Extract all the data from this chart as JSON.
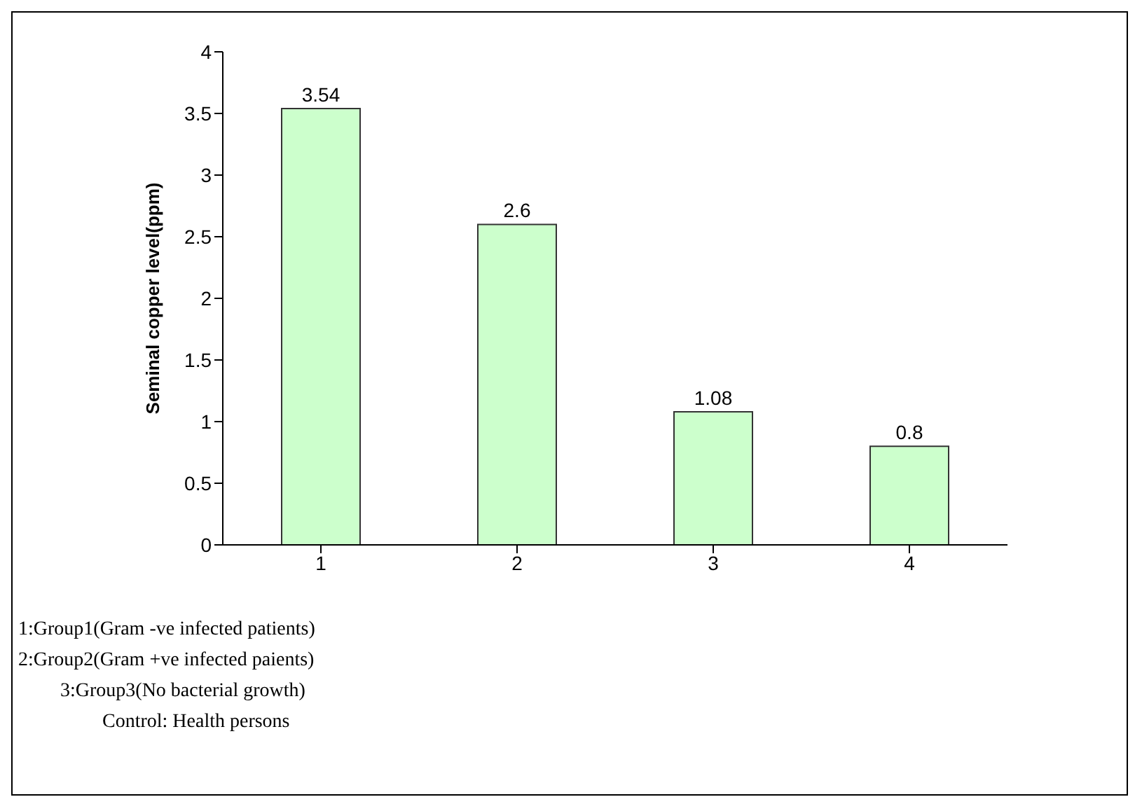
{
  "chart_data": {
    "type": "bar",
    "ylabel": "Seminal copper level(ppm)",
    "categories": [
      "1",
      "2",
      "3",
      "4"
    ],
    "values": [
      3.54,
      2.6,
      1.08,
      0.8
    ],
    "color": "#ccffcc",
    "ylim": [
      0,
      4
    ],
    "yticks": [
      0,
      0.5,
      1,
      1.5,
      2,
      2.5,
      3,
      3.5,
      4
    ],
    "grid": false,
    "legend": false,
    "data_labels": true,
    "annotations": [
      "1:Group1(Gram -ve infected patients)",
      "2:Group2(Gram +ve infected paients)",
      "3:Group3(No bacterial growth)",
      "Control: Health persons"
    ]
  }
}
